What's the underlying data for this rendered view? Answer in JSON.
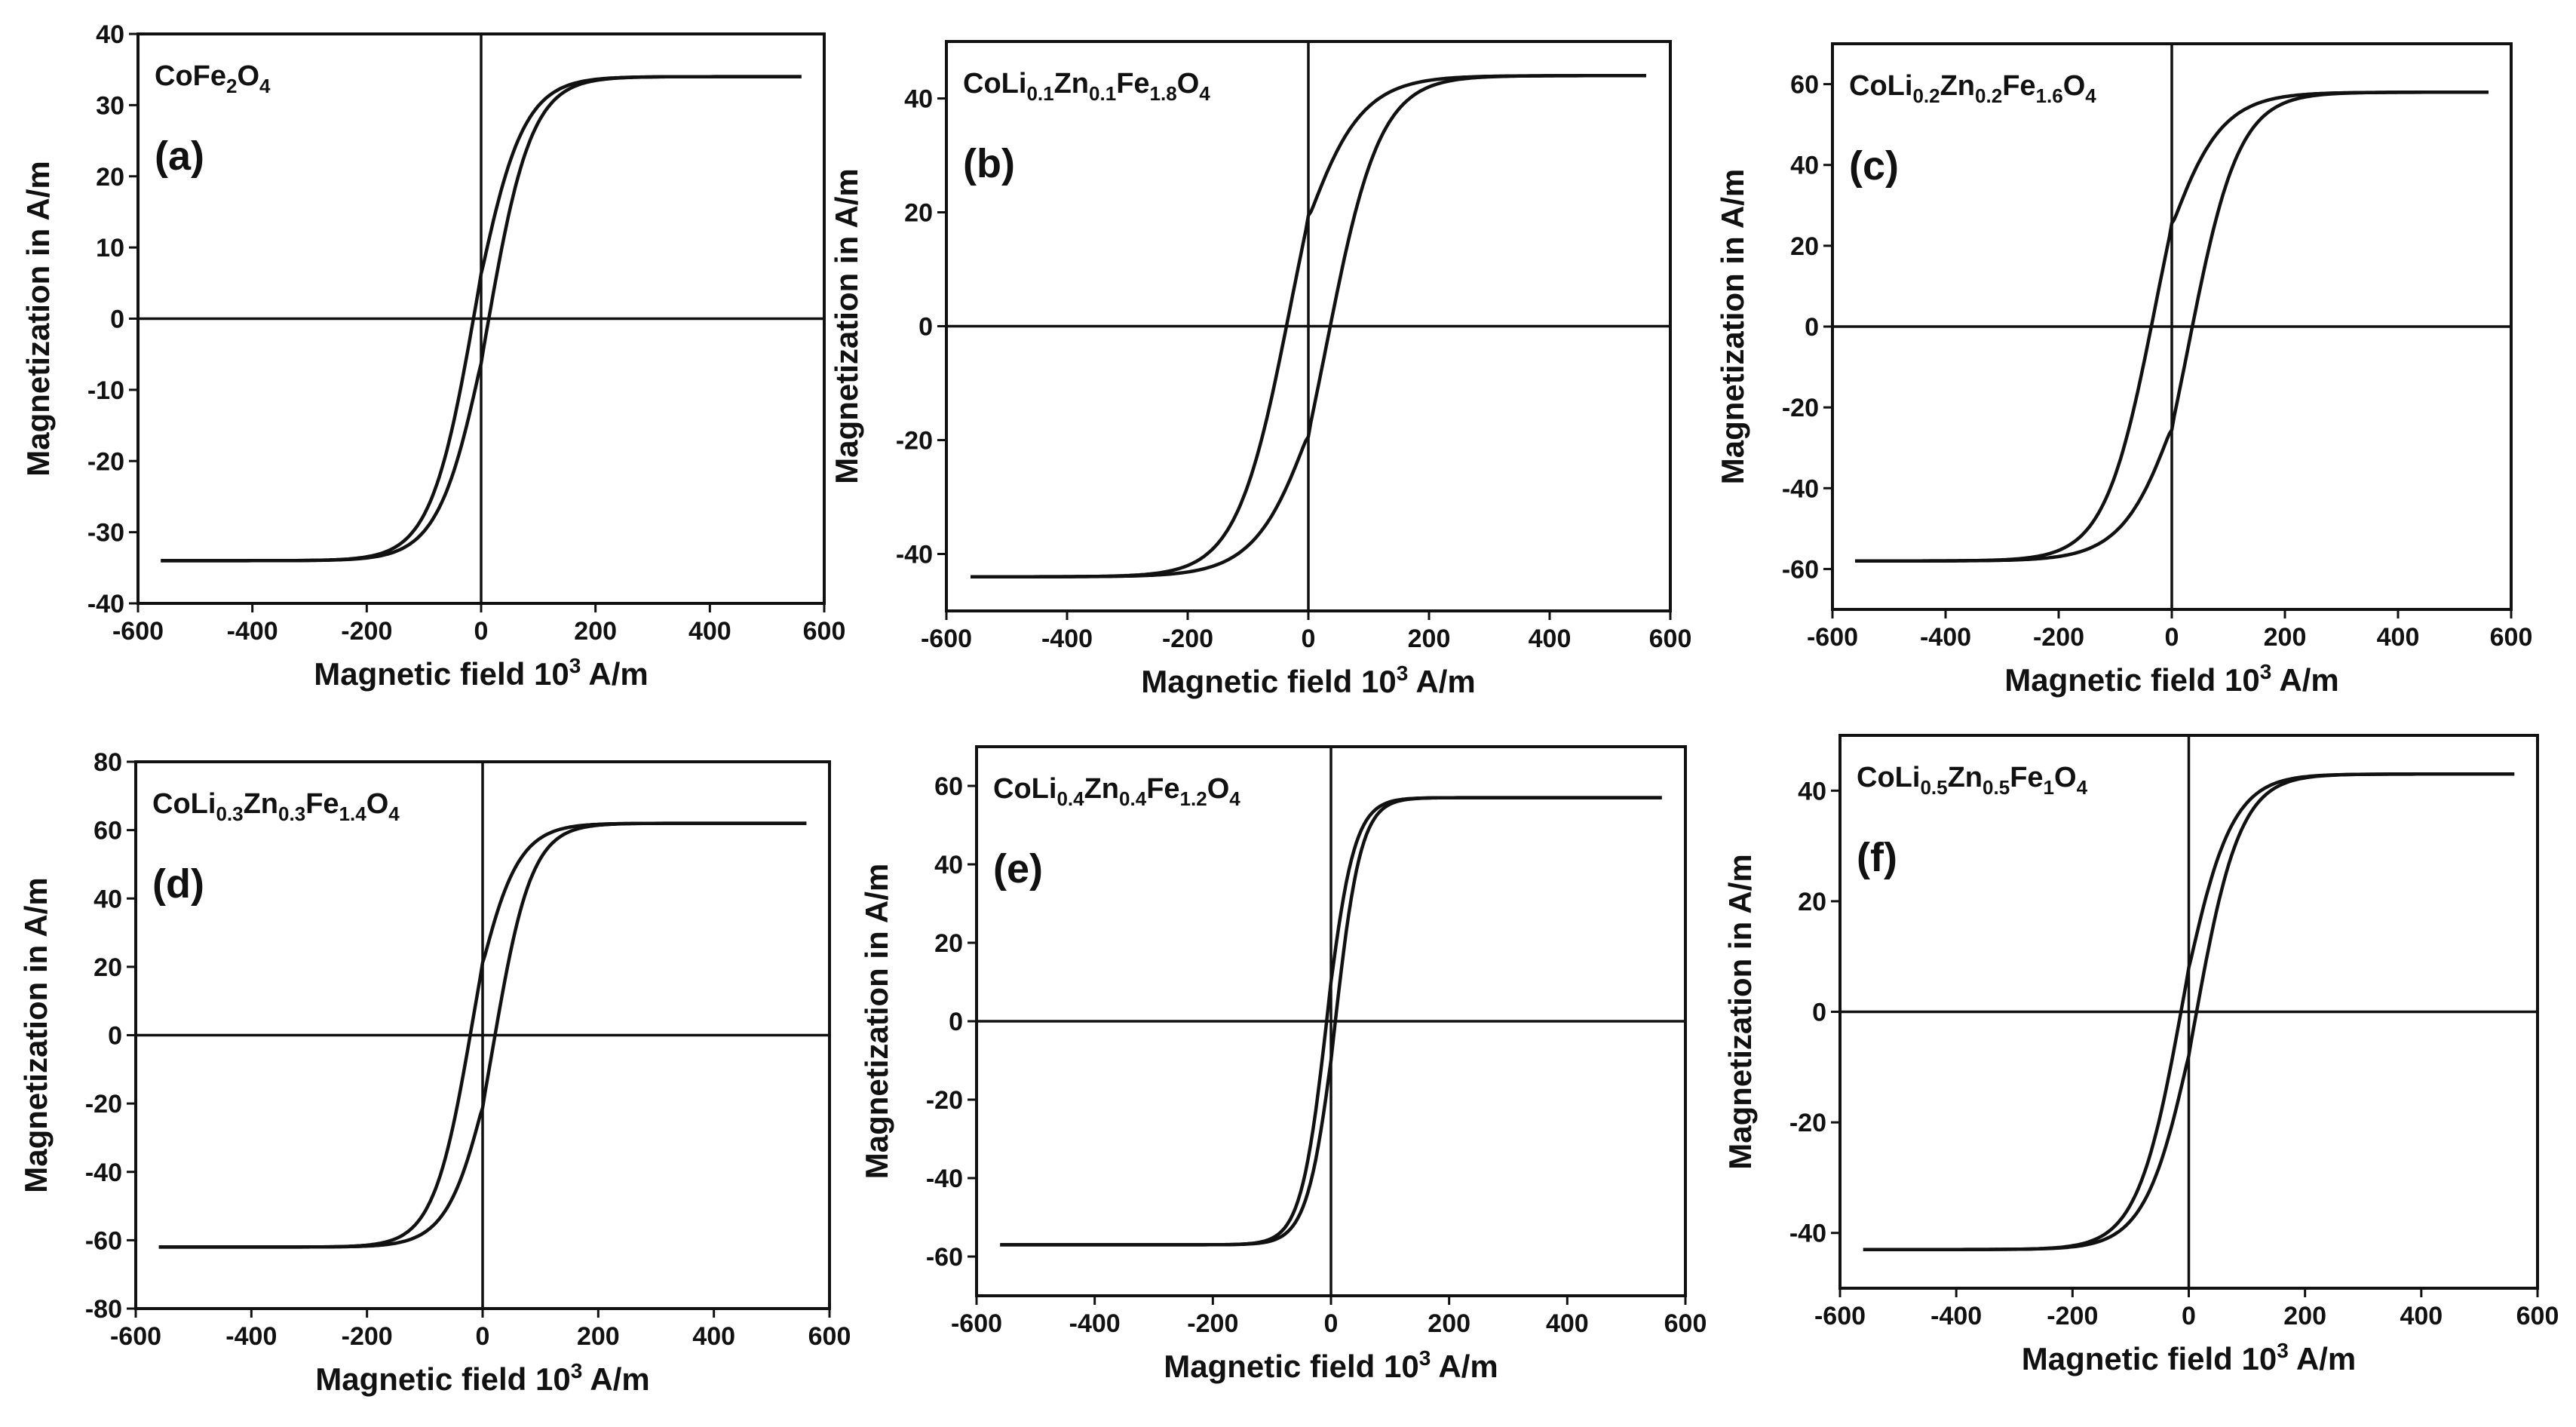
{
  "chart_data": [
    {
      "type": "line",
      "panel_label": "(a)",
      "compound": [
        [
          "Co",
          ""
        ],
        [
          "Fe",
          ""
        ],
        [
          "2",
          "sub"
        ],
        [
          "O",
          ""
        ],
        [
          "4",
          "sub"
        ]
      ],
      "xlabel": "Magnetic field 10",
      "xlabel_sup": "3",
      "xlabel_unit": " A/m",
      "ylabel": "Magnetization in A/m",
      "xlim": [
        -600,
        600
      ],
      "ylim": [
        -40,
        40
      ],
      "xticks": [
        -600,
        -400,
        -200,
        0,
        200,
        400,
        600
      ],
      "yticks": [
        -40,
        -30,
        -20,
        -10,
        0,
        10,
        20,
        30,
        40
      ],
      "xtick_labels": [
        "-600",
        "-400",
        "-200",
        "0",
        "200",
        "400",
        "600"
      ],
      "ytick_labels": [
        "-40",
        "-30",
        "-20",
        "-10",
        "0",
        "10",
        "20",
        "30",
        "40"
      ],
      "series": [
        {
          "name": "hysteresis loop",
          "Ms": 34,
          "Hc": 15,
          "Mr": 7,
          "H0": 80,
          "Hmax": 560
        }
      ]
    },
    {
      "type": "line",
      "panel_label": "(b)",
      "compound": [
        [
          "CoLi",
          ""
        ],
        [
          "0.1",
          "sub"
        ],
        [
          "Zn",
          ""
        ],
        [
          "0.1",
          "sub"
        ],
        [
          "Fe",
          ""
        ],
        [
          "1.8",
          "sub"
        ],
        [
          "O",
          ""
        ],
        [
          "4",
          "sub"
        ]
      ],
      "xlabel": "Magnetic field 10",
      "xlabel_sup": "3",
      "xlabel_unit": " A/m",
      "ylabel": "Magnetization in A/m",
      "xlim": [
        -600,
        600
      ],
      "ylim": [
        -50,
        50
      ],
      "xticks": [
        -600,
        -400,
        -200,
        0,
        200,
        400,
        600
      ],
      "yticks": [
        -40,
        -20,
        0,
        20,
        40
      ],
      "xtick_labels": [
        "-600",
        "-400",
        "-200",
        "0",
        "200",
        "400",
        "600"
      ],
      "ytick_labels": [
        "-40",
        "-20",
        "0",
        "20",
        "40"
      ],
      "series": [
        {
          "name": "hysteresis loop",
          "Ms": 44,
          "Hc": 45,
          "Mr": 16,
          "H0": 95,
          "Hmax": 560
        }
      ]
    },
    {
      "type": "line",
      "panel_label": "(c)",
      "compound": [
        [
          "CoLi",
          ""
        ],
        [
          "0.2",
          "sub"
        ],
        [
          "Zn",
          ""
        ],
        [
          "0.2",
          "sub"
        ],
        [
          "Fe",
          ""
        ],
        [
          "1.6",
          "sub"
        ],
        [
          "O",
          ""
        ],
        [
          "4",
          "sub"
        ]
      ],
      "xlabel": "Magnetic field 10",
      "xlabel_sup": "3",
      "xlabel_unit": " A/m",
      "ylabel": "Magnetization in A/m",
      "xlim": [
        -600,
        600
      ],
      "ylim": [
        -70,
        70
      ],
      "xticks": [
        -600,
        -400,
        -200,
        0,
        200,
        400,
        600
      ],
      "yticks": [
        -60,
        -40,
        -20,
        0,
        20,
        40,
        60
      ],
      "xtick_labels": [
        "-600",
        "-400",
        "-200",
        "0",
        "200",
        "400",
        "600"
      ],
      "ytick_labels": [
        "-60",
        "-40",
        "-20",
        "0",
        "20",
        "40",
        "60"
      ],
      "series": [
        {
          "name": "hysteresis loop",
          "Ms": 58,
          "Hc": 45,
          "Mr": 20,
          "H0": 95,
          "Hmax": 560
        }
      ]
    },
    {
      "type": "line",
      "panel_label": "(d)",
      "compound": [
        [
          "CoLi",
          ""
        ],
        [
          "0.3",
          "sub"
        ],
        [
          "Zn",
          ""
        ],
        [
          "0.3",
          "sub"
        ],
        [
          "Fe",
          ""
        ],
        [
          "1.4",
          "sub"
        ],
        [
          "O",
          ""
        ],
        [
          "4",
          "sub"
        ]
      ],
      "xlabel": "Magnetic field 10",
      "xlabel_sup": "3",
      "xlabel_unit": " A/m",
      "ylabel": "Magnetization in A/m",
      "xlim": [
        -600,
        600
      ],
      "ylim": [
        -80,
        80
      ],
      "xticks": [
        -600,
        -400,
        -200,
        0,
        200,
        400,
        600
      ],
      "yticks": [
        -80,
        -60,
        -40,
        -20,
        0,
        20,
        40,
        60,
        80
      ],
      "xtick_labels": [
        "-600",
        "-400",
        "-200",
        "0",
        "200",
        "400",
        "600"
      ],
      "ytick_labels": [
        "-80",
        "-60",
        "-40",
        "-20",
        "0",
        "20",
        "40",
        "60",
        "80"
      ],
      "series": [
        {
          "name": "hysteresis loop",
          "Ms": 62,
          "Hc": 25,
          "Mr": 17,
          "H0": 70,
          "Hmax": 560
        }
      ]
    },
    {
      "type": "line",
      "panel_label": "(e)",
      "compound": [
        [
          "CoLi",
          ""
        ],
        [
          "0.4",
          "sub"
        ],
        [
          "Zn",
          ""
        ],
        [
          "0.4",
          "sub"
        ],
        [
          "Fe",
          ""
        ],
        [
          "1.2",
          "sub"
        ],
        [
          "O",
          ""
        ],
        [
          "4",
          "sub"
        ]
      ],
      "xlabel": "Magnetic field 10",
      "xlabel_sup": "3",
      "xlabel_unit": " A/m",
      "ylabel": "Magnetization in A/m",
      "xlim": [
        -600,
        600
      ],
      "ylim": [
        -70,
        70
      ],
      "xticks": [
        -600,
        -400,
        -200,
        0,
        200,
        400,
        600
      ],
      "yticks": [
        -60,
        -40,
        -20,
        0,
        20,
        40,
        60
      ],
      "xtick_labels": [
        "-600",
        "-400",
        "-200",
        "0",
        "200",
        "400",
        "600"
      ],
      "ytick_labels": [
        "-60",
        "-40",
        "-20",
        "0",
        "20",
        "40",
        "60"
      ],
      "series": [
        {
          "name": "hysteresis loop",
          "Ms": 57,
          "Hc": 8,
          "Mr": 5,
          "H0": 45,
          "Hmax": 560
        }
      ]
    },
    {
      "type": "line",
      "panel_label": "(f)",
      "compound": [
        [
          "CoLi",
          ""
        ],
        [
          "0.5",
          "sub"
        ],
        [
          "Zn",
          ""
        ],
        [
          "0.5",
          "sub"
        ],
        [
          "Fe",
          ""
        ],
        [
          "1",
          "sub"
        ],
        [
          "O",
          ""
        ],
        [
          "4",
          "sub"
        ]
      ],
      "xlabel": "Magnetic field 10",
      "xlabel_sup": "3",
      "xlabel_unit": " A/m",
      "ylabel": "Magnetization in A/m",
      "xlim": [
        -600,
        600
      ],
      "ylim": [
        -50,
        50
      ],
      "xticks": [
        -600,
        -400,
        -200,
        0,
        200,
        400,
        600
      ],
      "yticks": [
        -40,
        -20,
        0,
        20,
        40
      ],
      "xtick_labels": [
        "-600",
        "-400",
        "-200",
        "0",
        "200",
        "400",
        "600"
      ],
      "ytick_labels": [
        "-40",
        "-20",
        "0",
        "20",
        "40"
      ],
      "series": [
        {
          "name": "hysteresis loop",
          "Ms": 43,
          "Hc": 15,
          "Mr": 8,
          "H0": 80,
          "Hmax": 560
        }
      ]
    }
  ]
}
